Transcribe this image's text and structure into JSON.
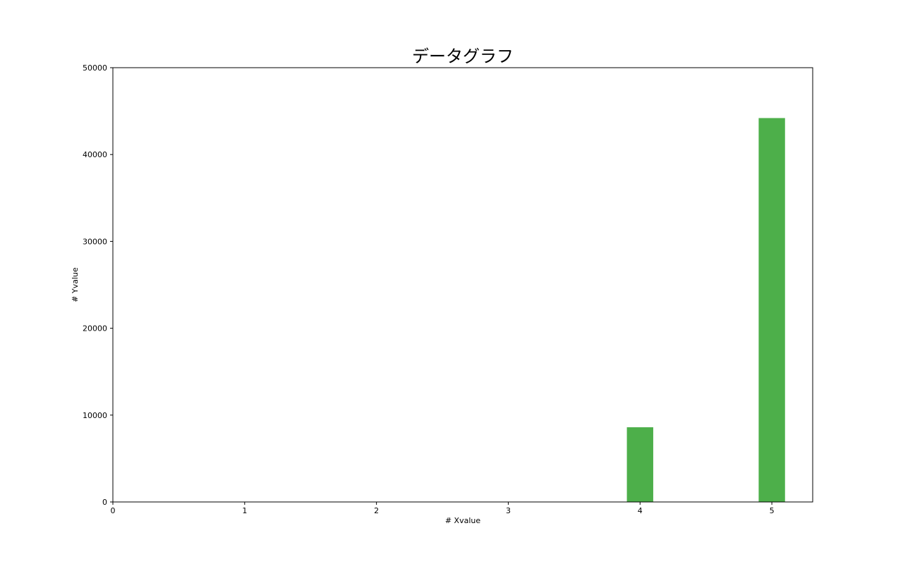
{
  "chart_data": {
    "type": "bar",
    "title": "データグラフ",
    "xlabel": "# Xvalue",
    "ylabel": "# Yvalue",
    "x": [
      4,
      5
    ],
    "values": [
      8600,
      44200
    ],
    "xlim": [
      0,
      5.31
    ],
    "ylim": [
      0,
      50000
    ],
    "xticks": [
      0,
      1,
      2,
      3,
      4,
      5
    ],
    "yticks": [
      0,
      10000,
      20000,
      30000,
      40000,
      50000
    ],
    "grid": false,
    "bar_color": "#4daf4a"
  }
}
